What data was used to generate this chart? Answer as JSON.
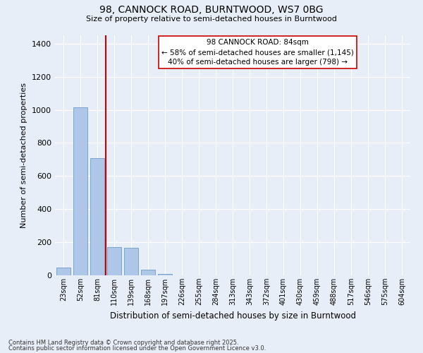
{
  "title1": "98, CANNOCK ROAD, BURNTWOOD, WS7 0BG",
  "title2": "Size of property relative to semi-detached houses in Burntwood",
  "xlabel": "Distribution of semi-detached houses by size in Burntwood",
  "ylabel": "Number of semi-detached properties",
  "categories": [
    "23sqm",
    "52sqm",
    "81sqm",
    "110sqm",
    "139sqm",
    "168sqm",
    "197sqm",
    "226sqm",
    "255sqm",
    "284sqm",
    "313sqm",
    "343sqm",
    "372sqm",
    "401sqm",
    "430sqm",
    "459sqm",
    "488sqm",
    "517sqm",
    "546sqm",
    "575sqm",
    "604sqm"
  ],
  "values": [
    45,
    1015,
    710,
    170,
    165,
    35,
    10,
    0,
    0,
    0,
    0,
    0,
    0,
    0,
    0,
    0,
    0,
    0,
    0,
    0,
    0
  ],
  "bar_color": "#aec6e8",
  "bar_edge_color": "#5a8fc2",
  "vline_color": "#cc0000",
  "annotation_text": "98 CANNOCK ROAD: 84sqm\n← 58% of semi-detached houses are smaller (1,145)\n40% of semi-detached houses are larger (798) →",
  "annotation_box_color": "#ffffff",
  "annotation_box_edge": "#cc0000",
  "bg_color": "#e8eef8",
  "plot_bg_color": "#e8eef8",
  "grid_color": "#ffffff",
  "footnote1": "Contains HM Land Registry data © Crown copyright and database right 2025.",
  "footnote2": "Contains public sector information licensed under the Open Government Licence v3.0.",
  "ylim": [
    0,
    1450
  ],
  "yticks": [
    0,
    200,
    400,
    600,
    800,
    1000,
    1200,
    1400
  ]
}
